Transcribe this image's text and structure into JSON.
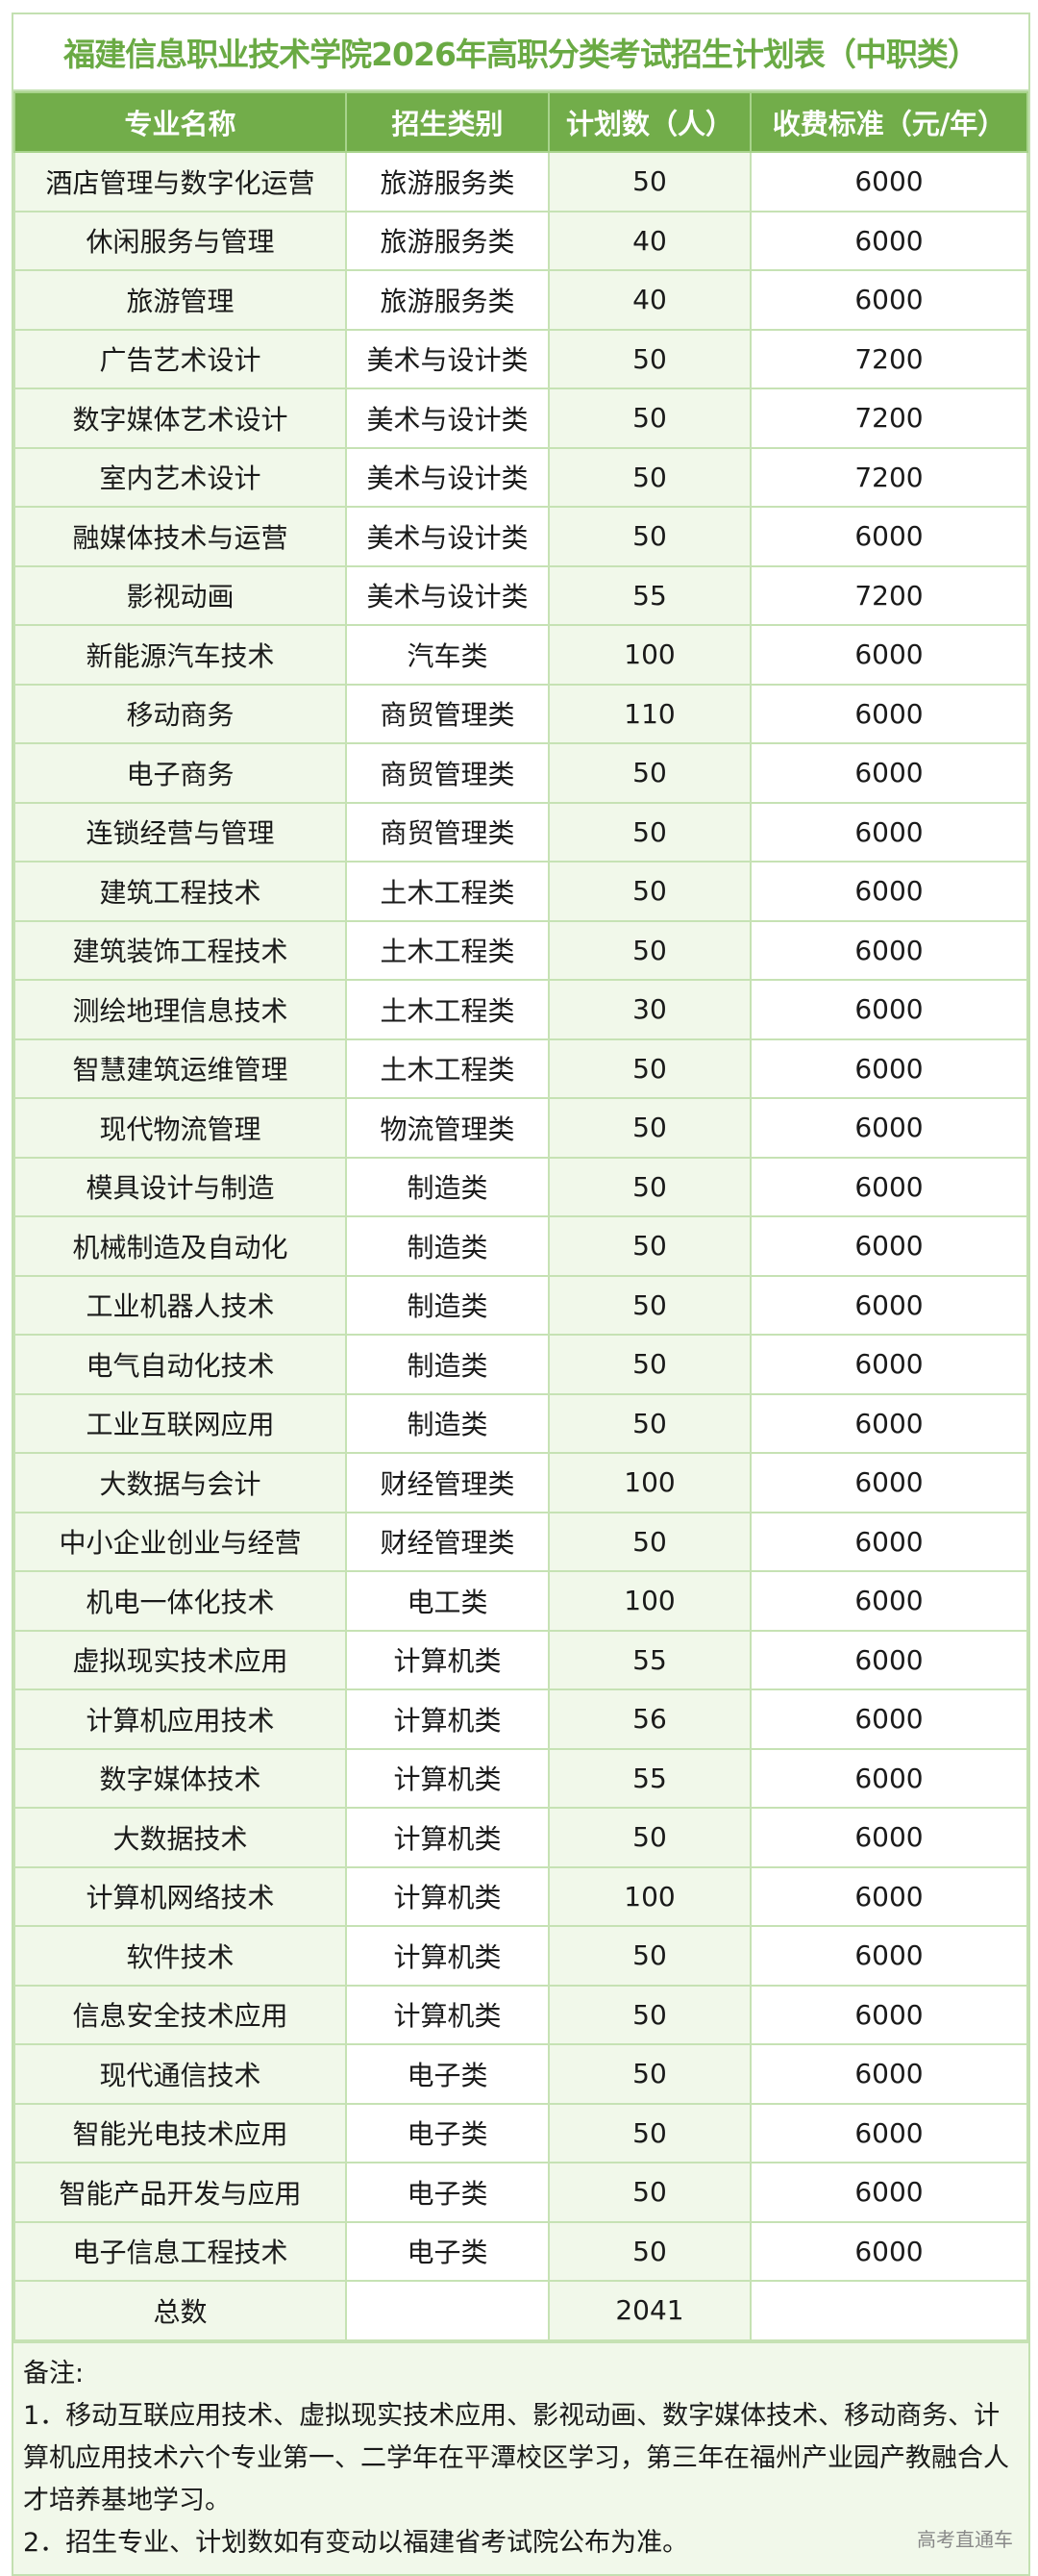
{
  "title": "福建信息职业技术学院2026年高职分类考试招生计划表（中职类）",
  "headers": [
    "专业名称",
    "招生类别",
    "计划数（人）",
    "收费标准（元/年）"
  ],
  "rows": [
    [
      "酒店管理与数字化运营",
      "旅游服务类",
      "50",
      "6000"
    ],
    [
      "休闲服务与管理",
      "旅游服务类",
      "40",
      "6000"
    ],
    [
      "旅游管理",
      "旅游服务类",
      "40",
      "6000"
    ],
    [
      "广告艺术设计",
      "美术与设计类",
      "50",
      "7200"
    ],
    [
      "数字媒体艺术设计",
      "美术与设计类",
      "50",
      "7200"
    ],
    [
      "室内艺术设计",
      "美术与设计类",
      "50",
      "7200"
    ],
    [
      "融媒体技术与运营",
      "美术与设计类",
      "50",
      "6000"
    ],
    [
      "影视动画",
      "美术与设计类",
      "55",
      "7200"
    ],
    [
      "新能源汽车技术",
      "汽车类",
      "100",
      "6000"
    ],
    [
      "移动商务",
      "商贸管理类",
      "110",
      "6000"
    ],
    [
      "电子商务",
      "商贸管理类",
      "50",
      "6000"
    ],
    [
      "连锁经营与管理",
      "商贸管理类",
      "50",
      "6000"
    ],
    [
      "建筑工程技术",
      "土木工程类",
      "50",
      "6000"
    ],
    [
      "建筑装饰工程技术",
      "土木工程类",
      "50",
      "6000"
    ],
    [
      "测绘地理信息技术",
      "土木工程类",
      "30",
      "6000"
    ],
    [
      "智慧建筑运维管理",
      "土木工程类",
      "50",
      "6000"
    ],
    [
      "现代物流管理",
      "物流管理类",
      "50",
      "6000"
    ],
    [
      "模具设计与制造",
      "制造类",
      "50",
      "6000"
    ],
    [
      "机械制造及自动化",
      "制造类",
      "50",
      "6000"
    ],
    [
      "工业机器人技术",
      "制造类",
      "50",
      "6000"
    ],
    [
      "电气自动化技术",
      "制造类",
      "50",
      "6000"
    ],
    [
      "工业互联网应用",
      "制造类",
      "50",
      "6000"
    ],
    [
      "大数据与会计",
      "财经管理类",
      "100",
      "6000"
    ],
    [
      "中小企业创业与经营",
      "财经管理类",
      "50",
      "6000"
    ],
    [
      "机电一体化技术",
      "电工类",
      "100",
      "6000"
    ],
    [
      "虚拟现实技术应用",
      "计算机类",
      "55",
      "6000"
    ],
    [
      "计算机应用技术",
      "计算机类",
      "56",
      "6000"
    ],
    [
      "数字媒体技术",
      "计算机类",
      "55",
      "6000"
    ],
    [
      "大数据技术",
      "计算机类",
      "50",
      "6000"
    ],
    [
      "计算机网络技术",
      "计算机类",
      "100",
      "6000"
    ],
    [
      "软件技术",
      "计算机类",
      "50",
      "6000"
    ],
    [
      "信息安全技术应用",
      "计算机类",
      "50",
      "6000"
    ],
    [
      "现代通信技术",
      "电子类",
      "50",
      "6000"
    ],
    [
      "智能光电技术应用",
      "电子类",
      "50",
      "6000"
    ],
    [
      "智能产品开发与应用",
      "电子类",
      "50",
      "6000"
    ],
    [
      "电子信息工程技术",
      "电子类",
      "50",
      "6000"
    ]
  ],
  "total": {
    "label": "总数",
    "category": "",
    "count": "2041",
    "fee": ""
  },
  "notes": {
    "heading": "备注:",
    "items": [
      "1．移动互联应用技术、虚拟现实技术应用、影视动画、数字媒体技术、移动商务、计算机应用技术六个专业第一、二学年在平潭校区学习，第三年在福州产业园产教融合人才培养基地学习。",
      "2．招生专业、计划数如有变动以福建省考试院公布为准。"
    ]
  },
  "watermark": "高考直通车",
  "colors": {
    "accent": "#72ad4a",
    "title": "#6aaa44",
    "tint": "#f1f8ea",
    "border": "#c6e2b4"
  }
}
